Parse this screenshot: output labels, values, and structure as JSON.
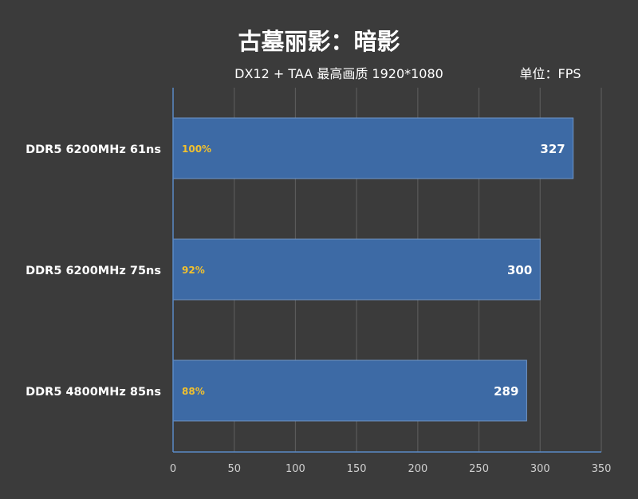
{
  "chart_data": {
    "type": "bar",
    "orientation": "horizontal",
    "title": "古墓丽影：暗影",
    "subtitle": "DX12 + TAA 最高画质 1920*1080",
    "unit_label": "单位：FPS",
    "categories": [
      "DDR5 6200MHz 61ns",
      "DDR5 6200MHz 75ns",
      "DDR5 4800MHz 85ns"
    ],
    "values": [
      327,
      300,
      289
    ],
    "percent_labels": [
      "100%",
      "92%",
      "88%"
    ],
    "xlim": [
      0,
      350
    ],
    "x_ticks": [
      "0",
      "50",
      "100",
      "150",
      "200",
      "250",
      "300",
      "350"
    ],
    "grid": true,
    "colors": {
      "background": "#3b3b3b",
      "bar": "#3d6aa5",
      "bar_edge": "#6f95c8",
      "axis": "#5b8ac6",
      "grid": "#5a5a5a",
      "percent": "#f2c12e",
      "text": "#ffffff",
      "tick": "#d0d0d0"
    }
  }
}
